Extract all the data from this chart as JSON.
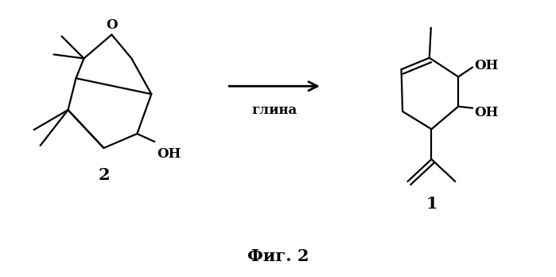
{
  "background_color": "#ffffff",
  "fig_width": 6.99,
  "fig_height": 3.48,
  "dpi": 100,
  "arrow_label": "глина",
  "caption": "Фиг. 2",
  "label_2": "2",
  "label_1": "1",
  "label_O": "O",
  "label_OH_1": "OH",
  "label_OH_2": "OH",
  "label_OH_3": "OH",
  "line_color": "#000000",
  "line_width": 1.6,
  "font_size_labels": 11,
  "font_size_caption": 15,
  "font_size_numbers": 13
}
